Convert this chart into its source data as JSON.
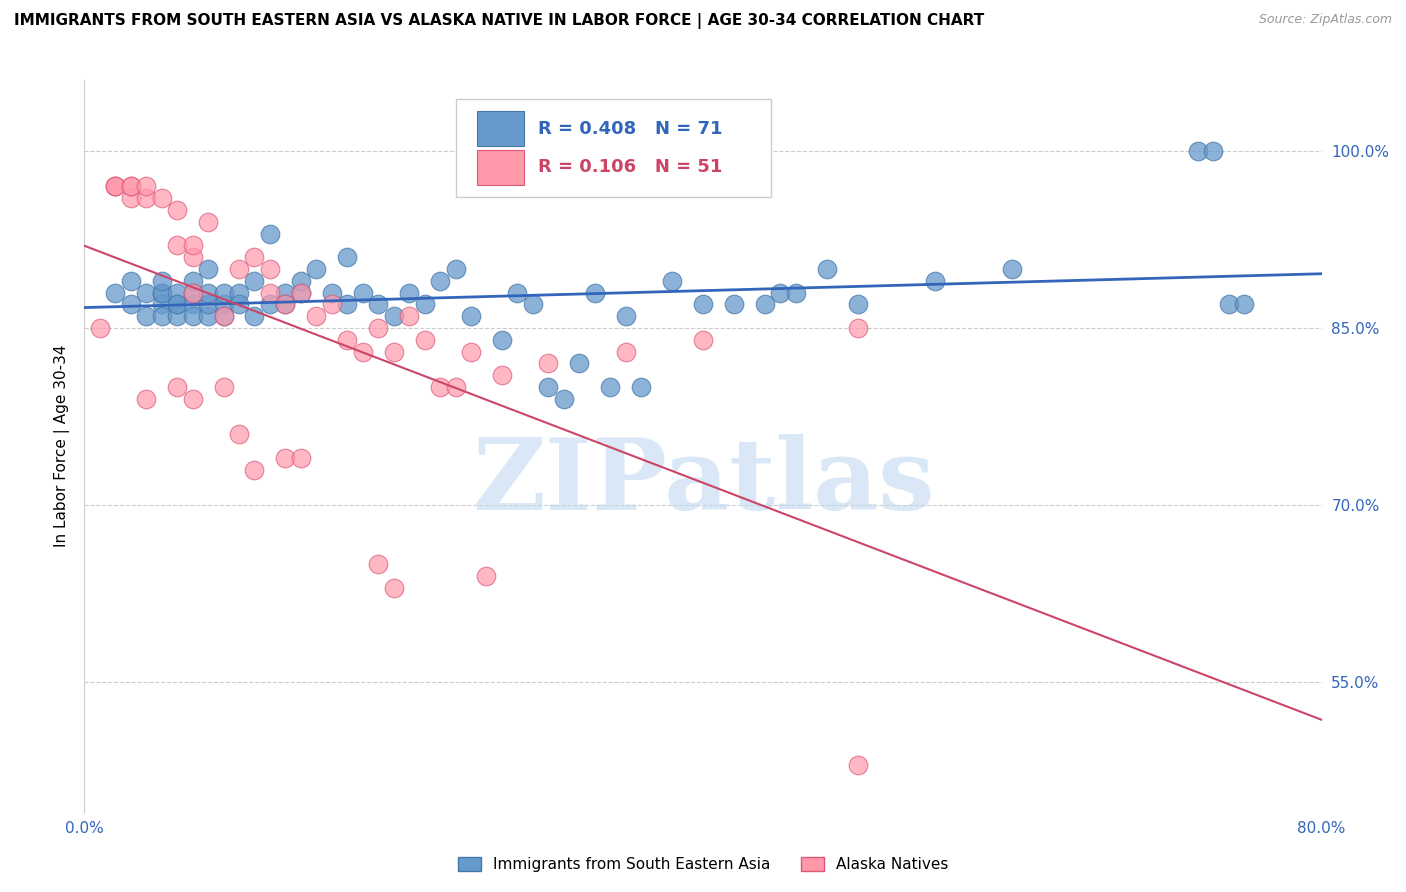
{
  "title": "IMMIGRANTS FROM SOUTH EASTERN ASIA VS ALASKA NATIVE IN LABOR FORCE | AGE 30-34 CORRELATION CHART",
  "source": "Source: ZipAtlas.com",
  "ylabel": "In Labor Force | Age 30-34",
  "right_yticks": [
    0.55,
    0.7,
    0.85,
    1.0
  ],
  "right_yticklabels": [
    "55.0%",
    "70.0%",
    "85.0%",
    "100.0%"
  ],
  "bottom_xticks": [
    0.0,
    0.1,
    0.2,
    0.3,
    0.4,
    0.5,
    0.6,
    0.7,
    0.8
  ],
  "bottom_xticklabels": [
    "0.0%",
    "",
    "",
    "",
    "",
    "",
    "",
    "",
    "80.0%"
  ],
  "xlim": [
    0.0,
    0.8
  ],
  "ylim": [
    0.44,
    1.06
  ],
  "blue_color": "#6699CC",
  "blue_edge_color": "#4477AA",
  "pink_color": "#FF99AA",
  "pink_edge_color": "#DD5577",
  "trend_blue": "#3366BB",
  "trend_pink": "#CC4466",
  "legend_R_blue": "0.408",
  "legend_N_blue": "71",
  "legend_R_pink": "0.106",
  "legend_N_pink": "51",
  "watermark": "ZIPatlas",
  "watermark_color": "#C0D8F0",
  "blue_scatter_x": [
    0.02,
    0.03,
    0.03,
    0.04,
    0.04,
    0.05,
    0.05,
    0.05,
    0.05,
    0.05,
    0.06,
    0.06,
    0.06,
    0.06,
    0.07,
    0.07,
    0.07,
    0.07,
    0.08,
    0.08,
    0.08,
    0.08,
    0.09,
    0.09,
    0.09,
    0.1,
    0.1,
    0.11,
    0.11,
    0.12,
    0.12,
    0.13,
    0.13,
    0.14,
    0.14,
    0.15,
    0.16,
    0.17,
    0.17,
    0.18,
    0.19,
    0.2,
    0.21,
    0.22,
    0.23,
    0.24,
    0.25,
    0.27,
    0.28,
    0.29,
    0.3,
    0.31,
    0.32,
    0.33,
    0.34,
    0.35,
    0.36,
    0.38,
    0.4,
    0.42,
    0.44,
    0.45,
    0.46,
    0.48,
    0.5,
    0.55,
    0.6,
    0.72,
    0.73,
    0.74,
    0.75
  ],
  "blue_scatter_y": [
    0.88,
    0.87,
    0.89,
    0.88,
    0.86,
    0.88,
    0.87,
    0.86,
    0.88,
    0.89,
    0.87,
    0.88,
    0.86,
    0.87,
    0.87,
    0.86,
    0.88,
    0.89,
    0.86,
    0.87,
    0.88,
    0.9,
    0.87,
    0.88,
    0.86,
    0.88,
    0.87,
    0.89,
    0.86,
    0.87,
    0.93,
    0.88,
    0.87,
    0.88,
    0.89,
    0.9,
    0.88,
    0.91,
    0.87,
    0.88,
    0.87,
    0.86,
    0.88,
    0.87,
    0.89,
    0.9,
    0.86,
    0.84,
    0.88,
    0.87,
    0.8,
    0.79,
    0.82,
    0.88,
    0.8,
    0.86,
    0.8,
    0.89,
    0.87,
    0.87,
    0.87,
    0.88,
    0.88,
    0.9,
    0.87,
    0.89,
    0.9,
    1.0,
    1.0,
    0.87,
    0.87
  ],
  "pink_scatter_x": [
    0.01,
    0.02,
    0.02,
    0.02,
    0.03,
    0.03,
    0.03,
    0.04,
    0.04,
    0.05,
    0.06,
    0.06,
    0.07,
    0.07,
    0.07,
    0.08,
    0.09,
    0.1,
    0.11,
    0.12,
    0.12,
    0.13,
    0.14,
    0.15,
    0.16,
    0.17,
    0.18,
    0.19,
    0.2,
    0.21,
    0.22,
    0.23,
    0.24,
    0.25,
    0.27,
    0.3,
    0.35,
    0.4,
    0.5
  ],
  "pink_scatter_y": [
    0.85,
    0.97,
    0.97,
    0.97,
    0.96,
    0.97,
    0.97,
    0.96,
    0.97,
    0.96,
    0.95,
    0.92,
    0.91,
    0.92,
    0.88,
    0.94,
    0.86,
    0.9,
    0.91,
    0.88,
    0.9,
    0.87,
    0.88,
    0.86,
    0.87,
    0.84,
    0.83,
    0.85,
    0.83,
    0.86,
    0.84,
    0.8,
    0.8,
    0.83,
    0.81,
    0.82,
    0.83,
    0.84,
    0.85
  ],
  "pink_outlier_x": [
    0.04,
    0.06,
    0.07,
    0.09,
    0.1,
    0.11,
    0.13,
    0.14,
    0.19,
    0.2,
    0.26,
    0.5
  ],
  "pink_outlier_y": [
    0.79,
    0.8,
    0.79,
    0.8,
    0.76,
    0.73,
    0.74,
    0.74,
    0.65,
    0.63,
    0.64,
    0.48
  ]
}
